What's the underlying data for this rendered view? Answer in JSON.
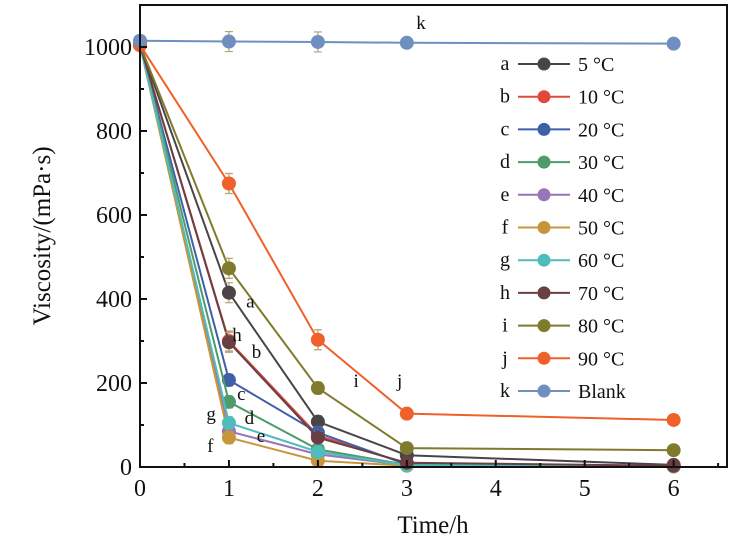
{
  "chart_data": {
    "type": "line",
    "title": "",
    "xlabel": "Time/h",
    "ylabel": "Viscosity/(mPa·s)",
    "xlim": [
      0,
      6.6
    ],
    "ylim": [
      0,
      1100
    ],
    "x_ticks": [
      0,
      1,
      2,
      3,
      4,
      5,
      6
    ],
    "y_ticks": [
      0,
      200,
      400,
      600,
      800,
      1000
    ],
    "grid": false,
    "legend_position": "right",
    "x": [
      0,
      1,
      2,
      3,
      6
    ],
    "series": [
      {
        "letter": "a",
        "name": "5 °C",
        "color": "#4a4448",
        "values": [
          1005,
          415,
          108,
          28,
          5
        ]
      },
      {
        "letter": "b",
        "name": "10 °C",
        "color": "#e04a3a",
        "values": [
          1005,
          300,
          75,
          8,
          3
        ]
      },
      {
        "letter": "c",
        "name": "20 °C",
        "color": "#3f5fa8",
        "values": [
          1005,
          207,
          82,
          6,
          2
        ]
      },
      {
        "letter": "d",
        "name": "30 °C",
        "color": "#4e9a6a",
        "values": [
          1005,
          155,
          42,
          5,
          2
        ]
      },
      {
        "letter": "e",
        "name": "40 °C",
        "color": "#9a74b8",
        "values": [
          1005,
          85,
          30,
          4,
          2
        ]
      },
      {
        "letter": "f",
        "name": "50 °C",
        "color": "#c8963a",
        "values": [
          1005,
          70,
          15,
          3,
          1
        ]
      },
      {
        "letter": "g",
        "name": "60 °C",
        "color": "#4fbcbc",
        "values": [
          1005,
          105,
          36,
          4,
          2
        ]
      },
      {
        "letter": "h",
        "name": "70 °C",
        "color": "#6a3f44",
        "values": [
          1005,
          297,
          70,
          10,
          3
        ]
      },
      {
        "letter": "i",
        "name": "80 °C",
        "color": "#7f7a2c",
        "values": [
          1005,
          473,
          188,
          45,
          40
        ]
      },
      {
        "letter": "j",
        "name": "90 °C",
        "color": "#f0602a",
        "values": [
          1005,
          675,
          303,
          127,
          112
        ]
      },
      {
        "letter": "k",
        "name": "Blank",
        "color": "#6f8fc0",
        "values": [
          1015,
          1013,
          1012,
          1010,
          1008
        ]
      }
    ],
    "annotations": [
      {
        "text": "a",
        "x": 1.24,
        "y": 380
      },
      {
        "text": "b",
        "x": 1.31,
        "y": 260
      },
      {
        "text": "h",
        "x": 1.09,
        "y": 300
      },
      {
        "text": "c",
        "x": 1.14,
        "y": 160
      },
      {
        "text": "g",
        "x": 0.8,
        "y": 112
      },
      {
        "text": "d",
        "x": 1.23,
        "y": 102
      },
      {
        "text": "f",
        "x": 0.79,
        "y": 36
      },
      {
        "text": "e",
        "x": 1.36,
        "y": 60
      },
      {
        "text": "i",
        "x": 2.43,
        "y": 190
      },
      {
        "text": "j",
        "x": 2.92,
        "y": 190
      },
      {
        "text": "k",
        "x": 3.16,
        "y": 1043
      }
    ]
  }
}
